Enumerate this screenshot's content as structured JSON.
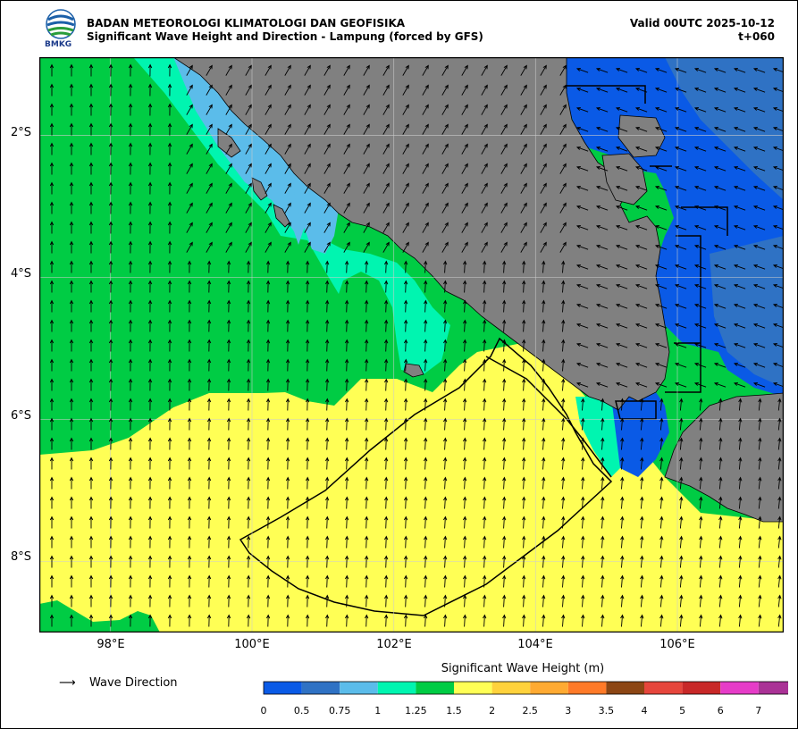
{
  "header": {
    "agency": "BADAN METEOROLOGI KLIMATOLOGI DAN GEOFISIKA",
    "subtitle": "Significant Wave Height and Direction - Lampung (forced by GFS)",
    "valid": "Valid 00UTC 2025-10-12",
    "lead": "t+060",
    "logo_text": "BMKG"
  },
  "map": {
    "lon_range": [
      97.0,
      107.5
    ],
    "lat_range": [
      -9.0,
      -0.9
    ],
    "lat_ticks": [
      {
        "value": -2,
        "label": "2°S"
      },
      {
        "value": -4,
        "label": "4°S"
      },
      {
        "value": -6,
        "label": "6°S"
      },
      {
        "value": -8,
        "label": "8°S"
      }
    ],
    "lon_ticks": [
      {
        "value": 98,
        "label": "98°E"
      },
      {
        "value": 100,
        "label": "100°E"
      },
      {
        "value": 102,
        "label": "102°E"
      },
      {
        "value": 104,
        "label": "104°E"
      },
      {
        "value": 106,
        "label": "106°E"
      }
    ],
    "grid": true,
    "land_color": "#808080",
    "region_colors": {
      "yellow": "#ffff55",
      "green": "#00cc44",
      "teal": "#00f5b0",
      "lightblue": "#5bbcea",
      "midblue": "#2f72c4",
      "blue": "#0a5ae6"
    }
  },
  "legend": {
    "arrow_glyph": "⟶",
    "arrow_label": "Wave Direction"
  },
  "colorbar": {
    "title": "Significant Wave Height (m)",
    "labels": [
      "0",
      "0.5",
      "0.75",
      "1",
      "1.25",
      "1.5",
      "2",
      "2.5",
      "3",
      "3.5",
      "4",
      "5",
      "6",
      "7"
    ],
    "colors": [
      "#0a5ae6",
      "#2f72c4",
      "#5bbcea",
      "#00f5b0",
      "#00cc44",
      "#ffff55",
      "#ffd23c",
      "#ffaa32",
      "#ff7a28",
      "#8c4614",
      "#e6463c",
      "#c82828",
      "#e63cc8",
      "#aa3296"
    ],
    "extend": "max"
  }
}
